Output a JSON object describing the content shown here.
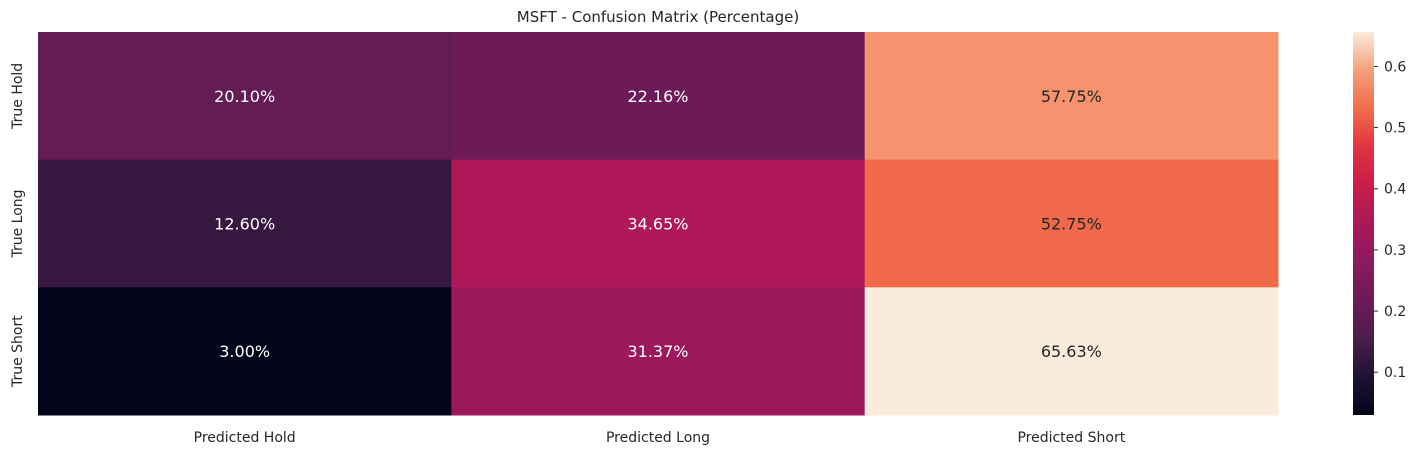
{
  "chart_data": {
    "type": "heatmap",
    "title": "MSFT - Confusion Matrix (Percentage)",
    "row_labels": [
      "True Hold",
      "True Long",
      "True Short"
    ],
    "col_labels": [
      "Predicted Hold",
      "Predicted Long",
      "Predicted Short"
    ],
    "values": [
      [
        0.201,
        0.2216,
        0.5775
      ],
      [
        0.126,
        0.3465,
        0.5275
      ],
      [
        0.03,
        0.3137,
        0.6563
      ]
    ],
    "annotations": [
      [
        "20.10%",
        "22.16%",
        "57.75%"
      ],
      [
        "12.60%",
        "34.65%",
        "52.75%"
      ],
      [
        "3.00%",
        "31.37%",
        "65.63%"
      ]
    ],
    "colormap": "rocket",
    "colorbar": {
      "range": [
        0.03,
        0.6563
      ],
      "ticks": [
        0.1,
        0.2,
        0.3,
        0.4,
        0.5,
        0.6
      ],
      "tick_labels": [
        "0.1",
        "0.2",
        "0.3",
        "0.4",
        "0.5",
        "0.6"
      ]
    }
  }
}
